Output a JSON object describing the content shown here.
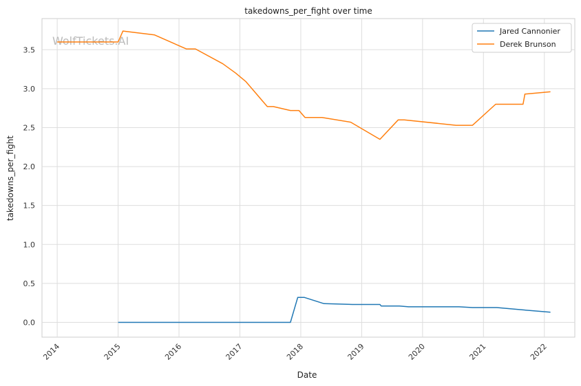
{
  "chart_data": {
    "type": "line",
    "title": "takedowns_per_fight over time",
    "xlabel": "Date",
    "ylabel": "takedowns_per_fight",
    "watermark": "WolfTickets.AI",
    "xlim": [
      2013.75,
      2022.5
    ],
    "ylim": [
      -0.19,
      3.9
    ],
    "xticks": [
      2014,
      2015,
      2016,
      2017,
      2018,
      2019,
      2020,
      2021,
      2022
    ],
    "xtick_labels": [
      "2014",
      "2015",
      "2016",
      "2017",
      "2018",
      "2019",
      "2020",
      "2021",
      "2022"
    ],
    "yticks": [
      0.0,
      0.5,
      1.0,
      1.5,
      2.0,
      2.5,
      3.0,
      3.5
    ],
    "ytick_labels": [
      "0.0",
      "0.5",
      "1.0",
      "1.5",
      "2.0",
      "2.5",
      "3.0",
      "3.5"
    ],
    "grid": true,
    "legend_position": "top-right",
    "series": [
      {
        "name": "Jared Cannonier",
        "color": "#1f77b4",
        "points": [
          [
            2015.0,
            0.0
          ],
          [
            2017.83,
            0.0
          ],
          [
            2017.95,
            0.32
          ],
          [
            2018.06,
            0.32
          ],
          [
            2018.38,
            0.24
          ],
          [
            2018.85,
            0.23
          ],
          [
            2019.3,
            0.23
          ],
          [
            2019.32,
            0.21
          ],
          [
            2019.62,
            0.21
          ],
          [
            2019.77,
            0.2
          ],
          [
            2020.6,
            0.2
          ],
          [
            2020.82,
            0.19
          ],
          [
            2021.22,
            0.19
          ],
          [
            2021.65,
            0.16
          ],
          [
            2022.1,
            0.13
          ]
        ]
      },
      {
        "name": "Derek Brunson",
        "color": "#ff7f0e",
        "points": [
          [
            2014.0,
            3.6
          ],
          [
            2015.0,
            3.6
          ],
          [
            2015.08,
            3.74
          ],
          [
            2015.6,
            3.69
          ],
          [
            2016.12,
            3.51
          ],
          [
            2016.27,
            3.51
          ],
          [
            2016.72,
            3.32
          ],
          [
            2016.93,
            3.2
          ],
          [
            2017.1,
            3.09
          ],
          [
            2017.45,
            2.77
          ],
          [
            2017.55,
            2.77
          ],
          [
            2017.83,
            2.72
          ],
          [
            2017.97,
            2.72
          ],
          [
            2018.07,
            2.63
          ],
          [
            2018.35,
            2.63
          ],
          [
            2018.82,
            2.57
          ],
          [
            2019.3,
            2.35
          ],
          [
            2019.6,
            2.6
          ],
          [
            2019.7,
            2.6
          ],
          [
            2020.55,
            2.53
          ],
          [
            2020.82,
            2.53
          ],
          [
            2021.2,
            2.8
          ],
          [
            2021.65,
            2.8
          ],
          [
            2021.68,
            2.93
          ],
          [
            2022.1,
            2.96
          ]
        ]
      }
    ]
  }
}
